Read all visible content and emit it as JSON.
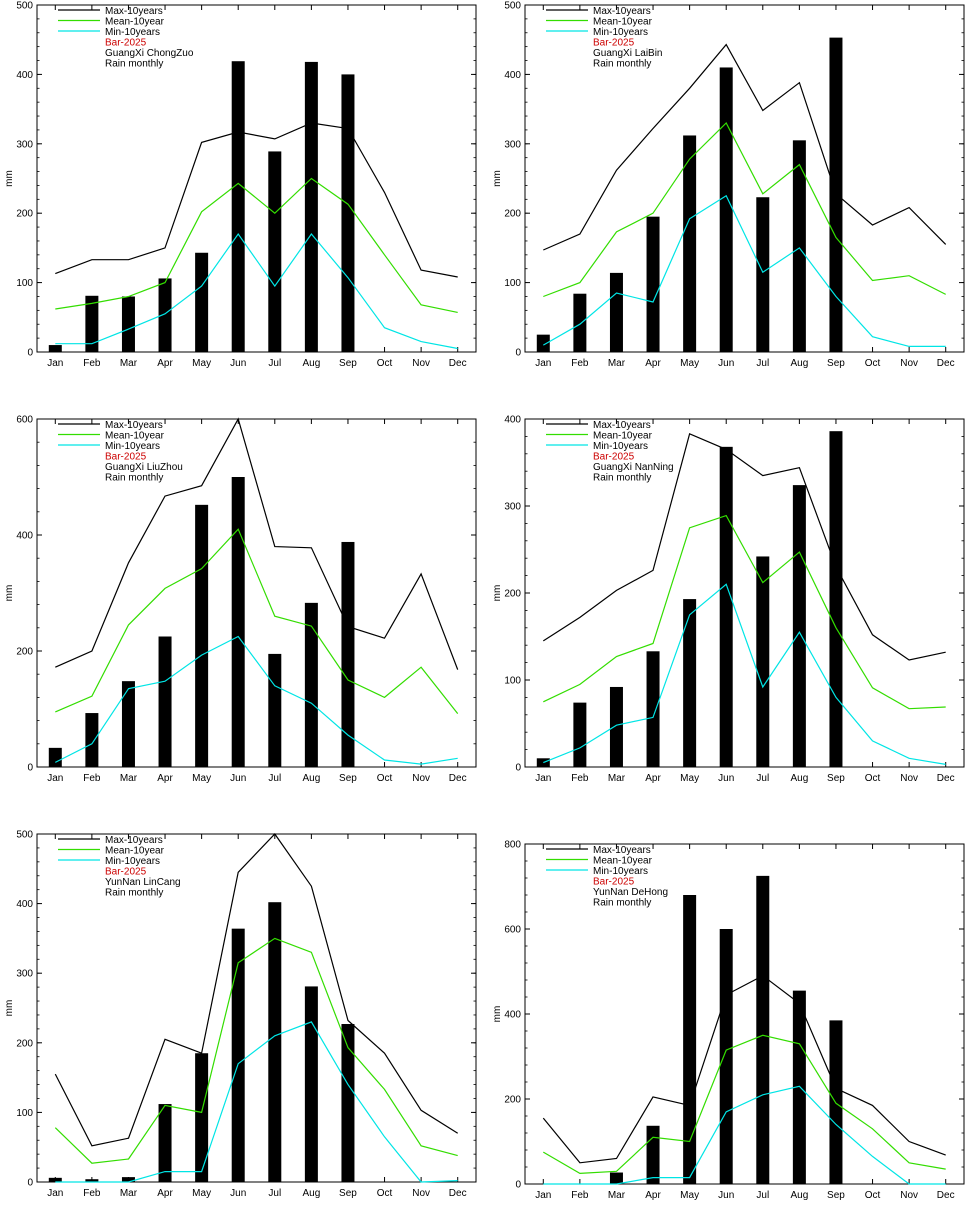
{
  "chart_data": [
    {
      "type": "bar",
      "station": "GuangXi ChongZuo",
      "subtitle": "Rain monthly",
      "ylabel": "mm",
      "ylim": [
        0,
        500
      ],
      "yticks": [
        0,
        100,
        200,
        300,
        400,
        500
      ],
      "categories": [
        "Jan",
        "Feb",
        "Mar",
        "Apr",
        "May",
        "Jun",
        "Jul",
        "Aug",
        "Sep",
        "Oct",
        "Nov",
        "Dec"
      ],
      "series": [
        {
          "name": "Max-10years",
          "color": "#000000",
          "values": [
            113,
            133,
            133,
            150,
            302,
            317,
            307,
            330,
            322,
            230,
            118,
            108
          ]
        },
        {
          "name": "Mean-10year",
          "color": "#33dd00",
          "values": [
            62,
            70,
            80,
            100,
            202,
            243,
            200,
            250,
            213,
            140,
            68,
            57
          ]
        },
        {
          "name": "Min-10years",
          "color": "#00e5e5",
          "values": [
            12,
            12,
            33,
            55,
            95,
            170,
            95,
            170,
            107,
            35,
            15,
            5
          ]
        },
        {
          "name": "Bar-2025",
          "color": "#cc0000",
          "values": [
            10,
            81,
            80,
            106,
            143,
            419,
            289,
            418,
            400,
            null,
            null,
            null
          ]
        }
      ]
    },
    {
      "type": "bar",
      "station": "GuangXi LaiBin",
      "subtitle": "Rain monthly",
      "ylabel": "mm",
      "ylim": [
        0,
        500
      ],
      "yticks": [
        0,
        100,
        200,
        300,
        400,
        500
      ],
      "categories": [
        "Jan",
        "Feb",
        "Mar",
        "Apr",
        "May",
        "Jun",
        "Jul",
        "Aug",
        "Sep",
        "Oct",
        "Nov",
        "Dec"
      ],
      "series": [
        {
          "name": "Max-10years",
          "color": "#000000",
          "values": [
            147,
            170,
            262,
            322,
            380,
            443,
            348,
            388,
            228,
            183,
            208,
            155
          ]
        },
        {
          "name": "Mean-10year",
          "color": "#33dd00",
          "values": [
            80,
            100,
            173,
            200,
            278,
            330,
            228,
            270,
            165,
            103,
            110,
            83
          ]
        },
        {
          "name": "Min-10years",
          "color": "#00e5e5",
          "values": [
            10,
            40,
            85,
            72,
            192,
            225,
            115,
            150,
            80,
            22,
            8,
            8
          ]
        },
        {
          "name": "Bar-2025",
          "color": "#cc0000",
          "values": [
            25,
            84,
            114,
            195,
            312,
            410,
            223,
            305,
            453,
            null,
            null,
            null
          ]
        }
      ]
    },
    {
      "type": "bar",
      "station": "GuangXi LiuZhou",
      "subtitle": "Rain monthly",
      "ylabel": "mm",
      "ylim": [
        0,
        600
      ],
      "yticks": [
        0,
        200,
        400,
        600
      ],
      "categories": [
        "Jan",
        "Feb",
        "Mar",
        "Apr",
        "May",
        "Jun",
        "Jul",
        "Aug",
        "Sep",
        "Oct",
        "Nov",
        "Dec"
      ],
      "series": [
        {
          "name": "Max-10years",
          "color": "#000000",
          "values": [
            172,
            200,
            352,
            467,
            485,
            600,
            380,
            378,
            242,
            222,
            333,
            168
          ]
        },
        {
          "name": "Mean-10year",
          "color": "#33dd00",
          "values": [
            95,
            122,
            245,
            308,
            342,
            410,
            260,
            243,
            150,
            120,
            172,
            92
          ]
        },
        {
          "name": "Min-10years",
          "color": "#00e5e5",
          "values": [
            8,
            40,
            135,
            148,
            193,
            225,
            140,
            110,
            55,
            12,
            5,
            15
          ]
        },
        {
          "name": "Bar-2025",
          "color": "#cc0000",
          "values": [
            33,
            93,
            148,
            225,
            452,
            500,
            195,
            283,
            388,
            null,
            null,
            null
          ]
        }
      ]
    },
    {
      "type": "bar",
      "station": "GuangXi NanNing",
      "subtitle": "Rain monthly",
      "ylabel": "mm",
      "ylim": [
        0,
        400
      ],
      "yticks": [
        0,
        100,
        200,
        300,
        400
      ],
      "categories": [
        "Jan",
        "Feb",
        "Mar",
        "Apr",
        "May",
        "Jun",
        "Jul",
        "Aug",
        "Sep",
        "Oct",
        "Nov",
        "Dec"
      ],
      "series": [
        {
          "name": "Max-10years",
          "color": "#000000",
          "values": [
            145,
            172,
            203,
            226,
            383,
            365,
            335,
            344,
            230,
            152,
            123,
            132
          ]
        },
        {
          "name": "Mean-10year",
          "color": "#33dd00",
          "values": [
            75,
            95,
            127,
            142,
            275,
            289,
            212,
            247,
            160,
            91,
            67,
            69
          ]
        },
        {
          "name": "Min-10years",
          "color": "#00e5e5",
          "values": [
            5,
            22,
            48,
            57,
            175,
            210,
            92,
            155,
            80,
            30,
            10,
            3
          ]
        },
        {
          "name": "Bar-2025",
          "color": "#cc0000",
          "values": [
            10,
            74,
            92,
            133,
            193,
            368,
            242,
            324,
            386,
            null,
            null,
            null
          ]
        }
      ]
    },
    {
      "type": "bar",
      "station": "YunNan LinCang",
      "subtitle": "Rain monthly",
      "ylabel": "mm",
      "ylim": [
        0,
        500
      ],
      "yticks": [
        0,
        100,
        200,
        300,
        400,
        500
      ],
      "categories": [
        "Jan",
        "Feb",
        "Mar",
        "Apr",
        "May",
        "Jun",
        "Jul",
        "Aug",
        "Sep",
        "Oct",
        "Nov",
        "Dec"
      ],
      "series": [
        {
          "name": "Max-10years",
          "color": "#000000",
          "values": [
            155,
            52,
            63,
            205,
            185,
            445,
            500,
            425,
            232,
            185,
            103,
            70
          ]
        },
        {
          "name": "Mean-10year",
          "color": "#33dd00",
          "values": [
            78,
            27,
            33,
            110,
            100,
            315,
            350,
            330,
            193,
            133,
            52,
            38
          ]
        },
        {
          "name": "Min-10years",
          "color": "#00e5e5",
          "values": [
            0,
            0,
            0,
            15,
            15,
            170,
            210,
            230,
            140,
            65,
            0,
            2
          ]
        },
        {
          "name": "Bar-2025",
          "color": "#cc0000",
          "values": [
            6,
            4,
            7,
            112,
            185,
            364,
            402,
            281,
            227,
            null,
            null,
            null
          ]
        }
      ]
    },
    {
      "type": "bar",
      "station": "YunNan DeHong",
      "subtitle": "Rain monthly",
      "ylabel": "mm",
      "ylim": [
        0,
        800
      ],
      "yticks": [
        0,
        200,
        400,
        600,
        800
      ],
      "categories": [
        "Jan",
        "Feb",
        "Mar",
        "Apr",
        "May",
        "Jun",
        "Jul",
        "Aug",
        "Sep",
        "Oct",
        "Nov",
        "Dec"
      ],
      "series": [
        {
          "name": "Max-10years",
          "color": "#000000",
          "values": [
            155,
            50,
            60,
            205,
            185,
            445,
            490,
            425,
            225,
            185,
            100,
            68
          ]
        },
        {
          "name": "Mean-10year",
          "color": "#33dd00",
          "values": [
            75,
            25,
            30,
            110,
            100,
            315,
            350,
            330,
            190,
            130,
            50,
            35
          ]
        },
        {
          "name": "Min-10years",
          "color": "#00e5e5",
          "values": [
            0,
            0,
            0,
            15,
            15,
            170,
            210,
            230,
            140,
            65,
            0,
            0
          ]
        },
        {
          "name": "Bar-2025",
          "color": "#cc0000",
          "values": [
            0,
            0,
            27,
            137,
            680,
            600,
            725,
            455,
            385,
            null,
            null,
            null
          ]
        }
      ]
    }
  ]
}
